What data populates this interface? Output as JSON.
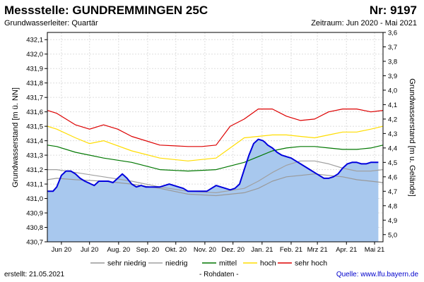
{
  "header": {
    "title": "Messstelle: GUNDREMMINGEN 25C",
    "nr": "Nr: 9197",
    "aquifer": "Grundwasserleiter: Quartär",
    "period": "Zeitraum: Jun 2020 - Mai 2021"
  },
  "footer": {
    "created": "erstellt:  21.05.2021",
    "note": "- Rohdaten -",
    "source": "Quelle: www.lfu.bayern.de"
  },
  "colors": {
    "sehr_niedrig": "#999999",
    "niedrig": "#a0a0a0",
    "mittel": "#007700",
    "hoch": "#ffdd00",
    "sehr_hoch": "#dd0000",
    "measured": "#0000dd",
    "fill": "#a8c8ee"
  },
  "chart_data": {
    "type": "line",
    "xlabel": "",
    "ylabel": "Grundwasserstand [m ü. NN]",
    "ylabel_right": "Grundwasserstand [m u. Gelände]",
    "ylim": [
      430.7,
      432.15
    ],
    "ylim_right": [
      5.05,
      3.6
    ],
    "y_ticks": [
      "432,1",
      "432,0",
      "431,9",
      "431,8",
      "431,7",
      "431,6",
      "431,5",
      "431,4",
      "431,3",
      "431,2",
      "431,1",
      "431,0",
      "430,9",
      "430,8",
      "430,7"
    ],
    "y_ticks_right": [
      "3,6",
      "3,7",
      "3,8",
      "3,9",
      "4,0",
      "4,1",
      "4,2",
      "4,3",
      "4,4",
      "4,5",
      "4,6",
      "4,7",
      "4,8",
      "4,9",
      "5,0"
    ],
    "x_ticks": [
      "Jun 20",
      "Jul 20",
      "Aug. 20",
      "Sep. 20",
      "Okt. 20",
      "Nov. 20",
      "Dez. 20",
      "Jan. 21",
      "Feb. 21",
      "Mrz 21",
      "Apr. 21",
      "Mai 21"
    ],
    "x_range_days": [
      0,
      358
    ],
    "grid": true,
    "legend_position": "bottom",
    "legend": [
      "sehr niedrig",
      "niedrig",
      "mittel",
      "hoch",
      "sehr hoch"
    ],
    "series": [
      {
        "name": "sehr niedrig",
        "x": [
          0,
          10,
          30,
          60,
          90,
          120,
          150,
          180,
          210,
          225,
          240,
          255,
          270,
          285,
          300,
          315,
          330,
          345,
          358
        ],
        "y": [
          431.13,
          431.14,
          431.13,
          431.12,
          431.1,
          431.07,
          431.03,
          431.02,
          431.04,
          431.07,
          431.12,
          431.15,
          431.16,
          431.17,
          431.16,
          431.15,
          431.13,
          431.12,
          431.11
        ]
      },
      {
        "name": "niedrig",
        "x": [
          0,
          10,
          30,
          60,
          90,
          120,
          150,
          180,
          210,
          225,
          240,
          255,
          270,
          285,
          300,
          315,
          330,
          345,
          358
        ],
        "y": [
          431.2,
          431.2,
          431.18,
          431.15,
          431.12,
          431.08,
          431.05,
          431.04,
          431.07,
          431.12,
          431.18,
          431.23,
          431.26,
          431.26,
          431.24,
          431.21,
          431.19,
          431.19,
          431.2
        ]
      },
      {
        "name": "mittel",
        "x": [
          0,
          10,
          30,
          60,
          90,
          120,
          150,
          180,
          210,
          225,
          240,
          255,
          270,
          285,
          300,
          315,
          330,
          345,
          358
        ],
        "y": [
          431.37,
          431.36,
          431.32,
          431.28,
          431.25,
          431.2,
          431.19,
          431.2,
          431.25,
          431.29,
          431.33,
          431.35,
          431.36,
          431.36,
          431.35,
          431.34,
          431.34,
          431.35,
          431.37
        ]
      },
      {
        "name": "hoch",
        "x": [
          0,
          10,
          30,
          45,
          60,
          90,
          120,
          150,
          165,
          180,
          195,
          210,
          240,
          255,
          270,
          285,
          300,
          315,
          330,
          345,
          358
        ],
        "y": [
          431.5,
          431.48,
          431.42,
          431.38,
          431.4,
          431.33,
          431.28,
          431.26,
          431.27,
          431.28,
          431.35,
          431.42,
          431.44,
          431.44,
          431.43,
          431.42,
          431.44,
          431.46,
          431.46,
          431.48,
          431.5
        ]
      },
      {
        "name": "sehr hoch",
        "x": [
          0,
          10,
          30,
          45,
          60,
          75,
          90,
          120,
          150,
          165,
          180,
          195,
          210,
          225,
          240,
          255,
          270,
          285,
          300,
          315,
          330,
          345,
          358
        ],
        "y": [
          431.61,
          431.59,
          431.51,
          431.48,
          431.51,
          431.48,
          431.43,
          431.37,
          431.36,
          431.36,
          431.37,
          431.5,
          431.55,
          431.62,
          431.62,
          431.57,
          431.54,
          431.55,
          431.6,
          431.62,
          431.62,
          431.6,
          431.61
        ]
      },
      {
        "name": "measured",
        "x": [
          0,
          6,
          10,
          15,
          20,
          25,
          30,
          35,
          40,
          50,
          55,
          60,
          65,
          70,
          75,
          80,
          85,
          90,
          95,
          100,
          105,
          110,
          115,
          120,
          130,
          140,
          145,
          150,
          160,
          170,
          175,
          180,
          185,
          190,
          195,
          200,
          205,
          210,
          215,
          220,
          225,
          230,
          232,
          235,
          240,
          245,
          250,
          255,
          260,
          265,
          270,
          275,
          280,
          285,
          290,
          295,
          300,
          305,
          310,
          315,
          320,
          325,
          330,
          335,
          340,
          345,
          350,
          353
        ],
        "y": [
          431.05,
          431.05,
          431.08,
          431.16,
          431.19,
          431.19,
          431.17,
          431.14,
          431.12,
          431.09,
          431.12,
          431.12,
          431.12,
          431.11,
          431.14,
          431.17,
          431.14,
          431.1,
          431.08,
          431.09,
          431.08,
          431.08,
          431.08,
          431.08,
          431.1,
          431.08,
          431.07,
          431.05,
          431.05,
          431.05,
          431.07,
          431.09,
          431.08,
          431.07,
          431.06,
          431.07,
          431.1,
          431.2,
          431.3,
          431.38,
          431.41,
          431.4,
          431.39,
          431.37,
          431.35,
          431.32,
          431.3,
          431.29,
          431.28,
          431.26,
          431.24,
          431.22,
          431.2,
          431.18,
          431.16,
          431.14,
          431.14,
          431.15,
          431.17,
          431.21,
          431.24,
          431.25,
          431.25,
          431.24,
          431.24,
          431.25,
          431.25,
          431.25
        ]
      }
    ]
  }
}
